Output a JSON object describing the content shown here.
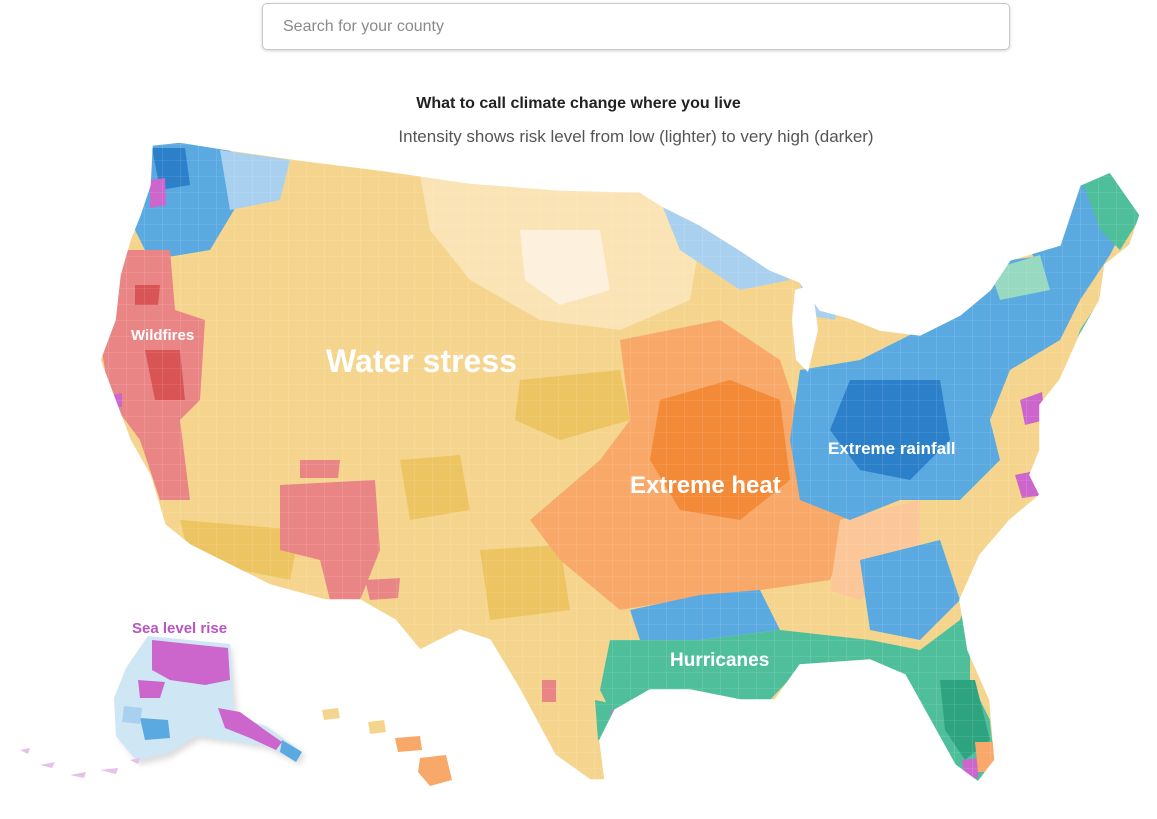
{
  "search": {
    "placeholder": "Search for your county"
  },
  "title": "What to call climate change where you live",
  "subtitle": "Intensity shows risk level from low (lighter) to very high (darker)",
  "labels": {
    "wildfires": "Wildfires",
    "water_stress": "Water stress",
    "extreme_heat": "Extreme heat",
    "extreme_rainfall": "Extreme rainfall",
    "hurricanes": "Hurricanes",
    "sea_level_rise": "Sea level rise"
  },
  "colors": {
    "water_stress": "#f5d58e",
    "water_stress_light": "#fae3b4",
    "water_stress_dark": "#ecc461",
    "extreme_heat": "#f8a868",
    "extreme_heat_dark": "#f28a38",
    "extreme_rainfall": "#5aa9e0",
    "extreme_rainfall_dark": "#2c7fc9",
    "extreme_rainfall_light": "#a9d1ef",
    "hurricanes": "#4fbf9b",
    "hurricanes_dark": "#2ea37f",
    "wildfires": "#ea8585",
    "wildfires_dark": "#d95454",
    "sea_level_rise": "#cc66cc",
    "sea_level_label": "#b955c2"
  }
}
